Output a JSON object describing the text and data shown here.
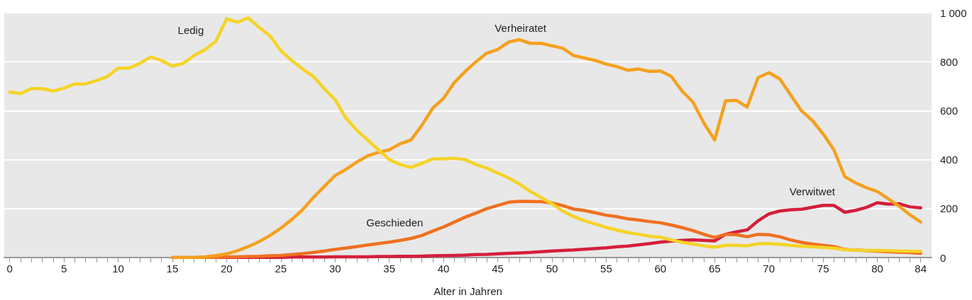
{
  "chart_data": {
    "type": "line",
    "xlabel": "Alter in Jahren",
    "x": [
      0,
      1,
      2,
      3,
      4,
      5,
      6,
      7,
      8,
      9,
      10,
      11,
      12,
      13,
      14,
      15,
      16,
      17,
      18,
      19,
      20,
      21,
      22,
      23,
      24,
      25,
      26,
      27,
      28,
      29,
      30,
      31,
      32,
      33,
      34,
      35,
      36,
      37,
      38,
      39,
      40,
      41,
      42,
      43,
      44,
      45,
      46,
      47,
      48,
      49,
      50,
      51,
      52,
      53,
      54,
      55,
      56,
      57,
      58,
      59,
      60,
      61,
      62,
      63,
      64,
      65,
      66,
      67,
      68,
      69,
      70,
      71,
      72,
      73,
      74,
      75,
      76,
      77,
      78,
      79,
      80,
      81,
      82,
      83,
      84
    ],
    "xlim": [
      -0.5,
      85
    ],
    "xticks": [
      0,
      {
        "value": 1,
        "label": null
      },
      {
        "value": 2,
        "label": null
      },
      {
        "value": 3,
        "label": null
      },
      {
        "value": 4,
        "label": null
      },
      5,
      {
        "value": 6,
        "label": null
      },
      {
        "value": 7,
        "label": null
      },
      {
        "value": 8,
        "label": null
      },
      {
        "value": 9,
        "label": null
      },
      10,
      {
        "value": 11,
        "label": null
      },
      {
        "value": 12,
        "label": null
      },
      {
        "value": 13,
        "label": null
      },
      {
        "value": 14,
        "label": null
      },
      15,
      {
        "value": 16,
        "label": null
      },
      {
        "value": 17,
        "label": null
      },
      {
        "value": 18,
        "label": null
      },
      {
        "value": 19,
        "label": null
      },
      20,
      {
        "value": 21,
        "label": null
      },
      {
        "value": 22,
        "label": null
      },
      {
        "value": 23,
        "label": null
      },
      {
        "value": 24,
        "label": null
      },
      25,
      {
        "value": 26,
        "label": null
      },
      {
        "value": 27,
        "label": null
      },
      {
        "value": 28,
        "label": null
      },
      {
        "value": 29,
        "label": null
      },
      30,
      {
        "value": 31,
        "label": null
      },
      {
        "value": 32,
        "label": null
      },
      {
        "value": 33,
        "label": null
      },
      {
        "value": 34,
        "label": null
      },
      35,
      {
        "value": 36,
        "label": null
      },
      {
        "value": 37,
        "label": null
      },
      {
        "value": 38,
        "label": null
      },
      {
        "value": 39,
        "label": null
      },
      40,
      {
        "value": 41,
        "label": null
      },
      {
        "value": 42,
        "label": null
      },
      {
        "value": 43,
        "label": null
      },
      {
        "value": 44,
        "label": null
      },
      45,
      {
        "value": 46,
        "label": null
      },
      {
        "value": 47,
        "label": null
      },
      {
        "value": 48,
        "label": null
      },
      {
        "value": 49,
        "label": null
      },
      50,
      {
        "value": 51,
        "label": null
      },
      {
        "value": 52,
        "label": null
      },
      {
        "value": 53,
        "label": null
      },
      {
        "value": 54,
        "label": null
      },
      55,
      {
        "value": 56,
        "label": null
      },
      {
        "value": 57,
        "label": null
      },
      {
        "value": 58,
        "label": null
      },
      {
        "value": 59,
        "label": null
      },
      60,
      {
        "value": 61,
        "label": null
      },
      {
        "value": 62,
        "label": null
      },
      {
        "value": 63,
        "label": null
      },
      {
        "value": 64,
        "label": null
      },
      65,
      {
        "value": 66,
        "label": null
      },
      {
        "value": 67,
        "label": null
      },
      {
        "value": 68,
        "label": null
      },
      {
        "value": 69,
        "label": null
      },
      70,
      {
        "value": 71,
        "label": null
      },
      {
        "value": 72,
        "label": null
      },
      {
        "value": 73,
        "label": null
      },
      {
        "value": 74,
        "label": null
      },
      75,
      {
        "value": 76,
        "label": null
      },
      {
        "value": 77,
        "label": null
      },
      {
        "value": 78,
        "label": null
      },
      {
        "value": 79,
        "label": null
      },
      80,
      {
        "value": 81,
        "label": null
      },
      {
        "value": 82,
        "label": null
      },
      {
        "value": 83,
        "label": null
      },
      84
    ],
    "ylim": [
      0,
      1000
    ],
    "yticks": [
      0,
      200,
      400,
      600,
      800,
      {
        "value": 1000,
        "label": "1 000"
      }
    ],
    "grid": "y",
    "legend": false,
    "marker": "none",
    "line_style": "solid",
    "series": [
      {
        "name": "Verwitwet",
        "color": "#d41f3a",
        "values": [
          null,
          null,
          null,
          null,
          null,
          null,
          null,
          null,
          null,
          null,
          null,
          null,
          null,
          null,
          null,
          null,
          null,
          null,
          null,
          0,
          0,
          1,
          1,
          1,
          1,
          1,
          2,
          2,
          2,
          2,
          3,
          3,
          3,
          3,
          4,
          4,
          5,
          5,
          6,
          7,
          8,
          9,
          10,
          12,
          13,
          15,
          17,
          19,
          21,
          24,
          27,
          29,
          31,
          34,
          37,
          40,
          44,
          47,
          52,
          57,
          63,
          67,
          70,
          72,
          70,
          68,
          95,
          105,
          113,
          150,
          178,
          190,
          195,
          197,
          205,
          213,
          213,
          185,
          193,
          205,
          224,
          218,
          220,
          207,
          203
        ]
      },
      {
        "name": "Geschieden",
        "color": "#f07020",
        "values": [
          null,
          null,
          null,
          null,
          null,
          null,
          null,
          null,
          null,
          null,
          null,
          null,
          null,
          null,
          null,
          0,
          0,
          0,
          1,
          1,
          2,
          3,
          4,
          5,
          7,
          9,
          12,
          16,
          21,
          27,
          33,
          39,
          45,
          51,
          57,
          63,
          70,
          78,
          90,
          108,
          125,
          145,
          165,
          182,
          200,
          213,
          226,
          230,
          229,
          228,
          223,
          212,
          198,
          192,
          183,
          173,
          167,
          158,
          153,
          147,
          142,
          133,
          122,
          110,
          95,
          82,
          95,
          93,
          85,
          95,
          93,
          85,
          72,
          62,
          55,
          50,
          45,
          33,
          30,
          28,
          26,
          24,
          22,
          20,
          17
        ]
      },
      {
        "name": "Verheiratet",
        "color": "#f4a11f",
        "values": [
          null,
          null,
          null,
          null,
          null,
          null,
          null,
          null,
          null,
          null,
          null,
          null,
          null,
          null,
          null,
          0,
          0,
          1,
          3,
          8,
          15,
          28,
          45,
          65,
          90,
          120,
          155,
          195,
          245,
          290,
          335,
          360,
          390,
          415,
          430,
          440,
          465,
          480,
          540,
          610,
          650,
          715,
          760,
          800,
          835,
          850,
          880,
          890,
          875,
          875,
          865,
          855,
          825,
          815,
          805,
          790,
          780,
          765,
          770,
          760,
          762,
          740,
          680,
          635,
          550,
          480,
          640,
          642,
          615,
          735,
          755,
          730,
          665,
          600,
          560,
          505,
          440,
          330,
          305,
          285,
          270,
          240,
          210,
          175,
          145
        ]
      },
      {
        "name": "Ledig",
        "color": "#f5d327",
        "values": [
          676,
          670,
          690,
          690,
          680,
          692,
          709,
          709,
          723,
          739,
          774,
          774,
          793,
          819,
          805,
          782,
          793,
          826,
          849,
          883,
          975,
          961,
          979,
          940,
          905,
          845,
          805,
          770,
          740,
          690,
          645,
          570,
          520,
          480,
          440,
          400,
          380,
          368,
          385,
          403,
          403,
          405,
          400,
          380,
          365,
          345,
          325,
          300,
          270,
          245,
          220,
          190,
          167,
          150,
          137,
          123,
          112,
          102,
          95,
          87,
          83,
          72,
          62,
          55,
          48,
          42,
          50,
          50,
          48,
          56,
          57,
          54,
          50,
          46,
          44,
          41,
          38,
          32,
          30,
          29,
          29,
          28,
          27,
          26,
          25
        ]
      }
    ]
  }
}
